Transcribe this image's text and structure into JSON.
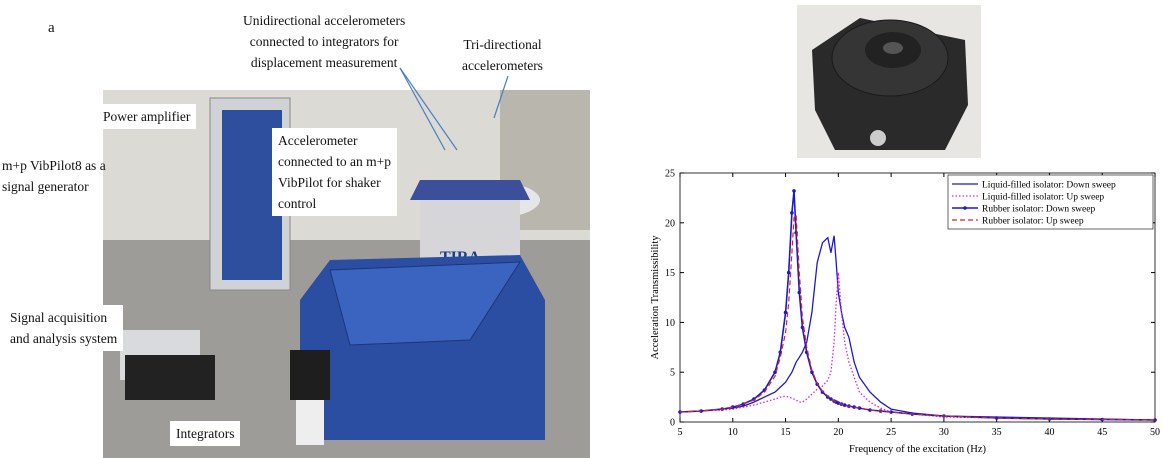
{
  "panel_label": "a",
  "annotations": [
    {
      "lines": [
        "Unidirectional accelerometers",
        "connected to integrators for",
        "displacement measurement"
      ]
    },
    {
      "lines": [
        "Tri-directional",
        "accelerometers"
      ]
    },
    {
      "lines": [
        "Power amplifier"
      ]
    },
    {
      "lines": [
        "Accelerometer",
        "connected to an m+p",
        "VibPilot for shaker",
        "control"
      ]
    },
    {
      "lines": [
        "m+p VibPilot8 as a",
        "signal generator"
      ]
    },
    {
      "lines": [
        "Signal acquisition",
        "and analysis system"
      ]
    },
    {
      "lines": [
        "Integrators"
      ]
    }
  ],
  "chart_data": {
    "type": "line",
    "xlabel": "Frequency of the excitation (Hz)",
    "ylabel": "Acceleration Transmissibility",
    "x": [
      5,
      7,
      9,
      10,
      11,
      12,
      13,
      14,
      14.5,
      15,
      15.3,
      15.6,
      15.8,
      16,
      16.3,
      16.6,
      17,
      17.5,
      18,
      18.5,
      19,
      19.3,
      19.6,
      19.8,
      20,
      20.3,
      20.6,
      21,
      21.5,
      22,
      23,
      24,
      25,
      27,
      30,
      35,
      40,
      45,
      50
    ],
    "xlim": [
      5,
      50
    ],
    "xticks": [
      5,
      10,
      15,
      20,
      25,
      30,
      35,
      40,
      45,
      50
    ],
    "ylim": [
      0,
      25
    ],
    "yticks": [
      0,
      5,
      10,
      15,
      20,
      25
    ],
    "legend": "upper right",
    "series": [
      {
        "name": "Liquid-filled isolator: Down sweep",
        "color": "#1a1acc",
        "dash": "solid",
        "width": 1.3,
        "marker": false,
        "values": [
          1,
          1.1,
          1.3,
          1.4,
          1.6,
          2,
          2.5,
          3,
          3.5,
          4,
          4.5,
          5,
          5.5,
          6,
          6.5,
          7,
          8,
          11,
          16,
          18,
          18.5,
          17,
          18.7,
          16,
          13,
          11,
          9.5,
          8.5,
          6,
          4.5,
          3,
          2,
          1.3,
          0.9,
          0.6,
          0.5,
          0.4,
          0.3,
          0.2
        ]
      },
      {
        "name": "Liquid-filled isolator: Up sweep",
        "color": "#e020e0",
        "dash": "dotted",
        "width": 1.3,
        "marker": false,
        "values": [
          1,
          1.1,
          1.2,
          1.3,
          1.5,
          1.7,
          2,
          2.3,
          2.5,
          2.6,
          2.5,
          2.4,
          2.3,
          2.2,
          2,
          2,
          2.3,
          2.8,
          3.3,
          3.6,
          4.2,
          5,
          8,
          12,
          15,
          11,
          8,
          6,
          4.5,
          3,
          2,
          1.4,
          1,
          0.8,
          0.5,
          0.4,
          0.3,
          0.25,
          0.2
        ]
      },
      {
        "name": "Rubber isolator: Down sweep",
        "color": "#1a1acc",
        "dash": "solid",
        "width": 1.6,
        "marker": true,
        "values": [
          1,
          1.1,
          1.3,
          1.5,
          1.8,
          2.3,
          3.2,
          5,
          7,
          11,
          15,
          21,
          23.2,
          19,
          13,
          9.5,
          7,
          5,
          3.8,
          3,
          2.5,
          2.3,
          2.1,
          2,
          1.9,
          1.8,
          1.7,
          1.6,
          1.5,
          1.4,
          1.2,
          1.1,
          1,
          0.8,
          0.6,
          0.4,
          0.3,
          0.25,
          0.2
        ]
      },
      {
        "name": "Rubber isolator: Up sweep",
        "color": "#e02020",
        "dash": "dashed",
        "width": 1.2,
        "marker": false,
        "values": [
          1,
          1.1,
          1.3,
          1.5,
          1.8,
          2.2,
          3,
          4.6,
          6.5,
          9,
          12,
          17,
          20.5,
          20.8,
          15,
          10.5,
          7.5,
          5.2,
          3.9,
          3.1,
          2.6,
          2.3,
          2.1,
          2,
          1.9,
          1.8,
          1.7,
          1.6,
          1.5,
          1.4,
          1.2,
          1.1,
          1,
          0.8,
          0.6,
          0.4,
          0.3,
          0.25,
          0.2
        ]
      }
    ]
  }
}
